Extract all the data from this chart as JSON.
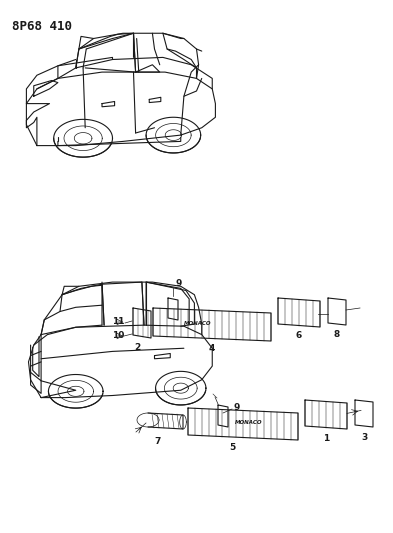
{
  "title_code": "8P68 410",
  "background_color": "#ffffff",
  "line_color": "#1a1a1a",
  "fig_width": 3.93,
  "fig_height": 5.33,
  "dpi": 100
}
